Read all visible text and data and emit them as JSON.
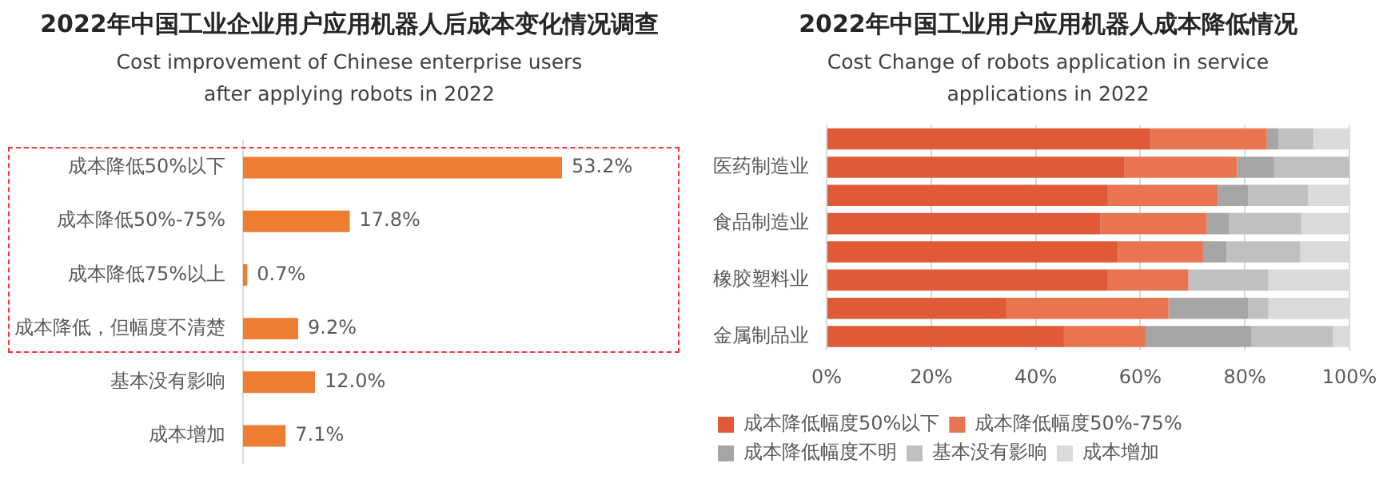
{
  "chart_data": [
    {
      "type": "bar",
      "orientation": "horizontal",
      "title": "2022年中国工业企业用户应用机器人后成本变化情况调查",
      "subtitle": "Cost improvement of Chinese enterprise users after applying robots in 2022",
      "categories": [
        "成本降低50%以下",
        "成本降低50%-75%",
        "成本降低75%以上",
        "成本降低，但幅度不清楚",
        "基本没有影响",
        "成本增加"
      ],
      "values": [
        53.2,
        17.8,
        0.7,
        9.2,
        12.0,
        7.1
      ],
      "value_labels": [
        "53.2%",
        "17.8%",
        "0.7%",
        "9.2%",
        "12.0%",
        "7.1%"
      ],
      "color": "#ed7d31"
    },
    {
      "type": "bar",
      "orientation": "horizontal",
      "stacked": true,
      "title": "2022年中国工业用户应用机器人成本降低情况",
      "subtitle": "Cost Change of robots application in service applications in 2022",
      "categories": [
        null,
        "医药制造业",
        null,
        "食品制造业",
        null,
        "橡胶塑料业",
        null,
        "金属制品业"
      ],
      "series": [
        {
          "name": "成本降低幅度50%以下",
          "color": "#e05a37",
          "values": [
            62.0,
            57.0,
            53.8,
            52.4,
            55.7,
            53.8,
            34.5,
            45.4
          ]
        },
        {
          "name": "成本降低幅度50%-75%",
          "color": "#e87550",
          "values": [
            22.2,
            21.5,
            21.0,
            20.3,
            16.3,
            15.4,
            30.9,
            15.6
          ]
        },
        {
          "name": "成本降低幅度不明",
          "color": "#a5a5a5",
          "values": [
            2.2,
            7.1,
            5.8,
            4.3,
            4.5,
            0,
            15.2,
            20.3
          ]
        },
        {
          "name": "基本没有影响",
          "color": "#c0c0c0",
          "values": [
            6.7,
            14.4,
            11.5,
            13.8,
            14.1,
            15.3,
            3.9,
            15.5
          ]
        },
        {
          "name": "成本增加",
          "color": "#dadada",
          "values": [
            6.9,
            0,
            7.9,
            9.2,
            9.4,
            15.5,
            15.5,
            3.2
          ]
        }
      ],
      "xlim": [
        0,
        100
      ],
      "xticks": [
        {
          "value": 0,
          "label": "0%"
        },
        {
          "value": 20,
          "label": "20%"
        },
        {
          "value": 40,
          "label": "40%"
        },
        {
          "value": 60,
          "label": "60%"
        },
        {
          "value": 80,
          "label": "80%"
        },
        {
          "value": 100,
          "label": "100%"
        }
      ],
      "grid": "x",
      "legend": "bottom"
    }
  ]
}
